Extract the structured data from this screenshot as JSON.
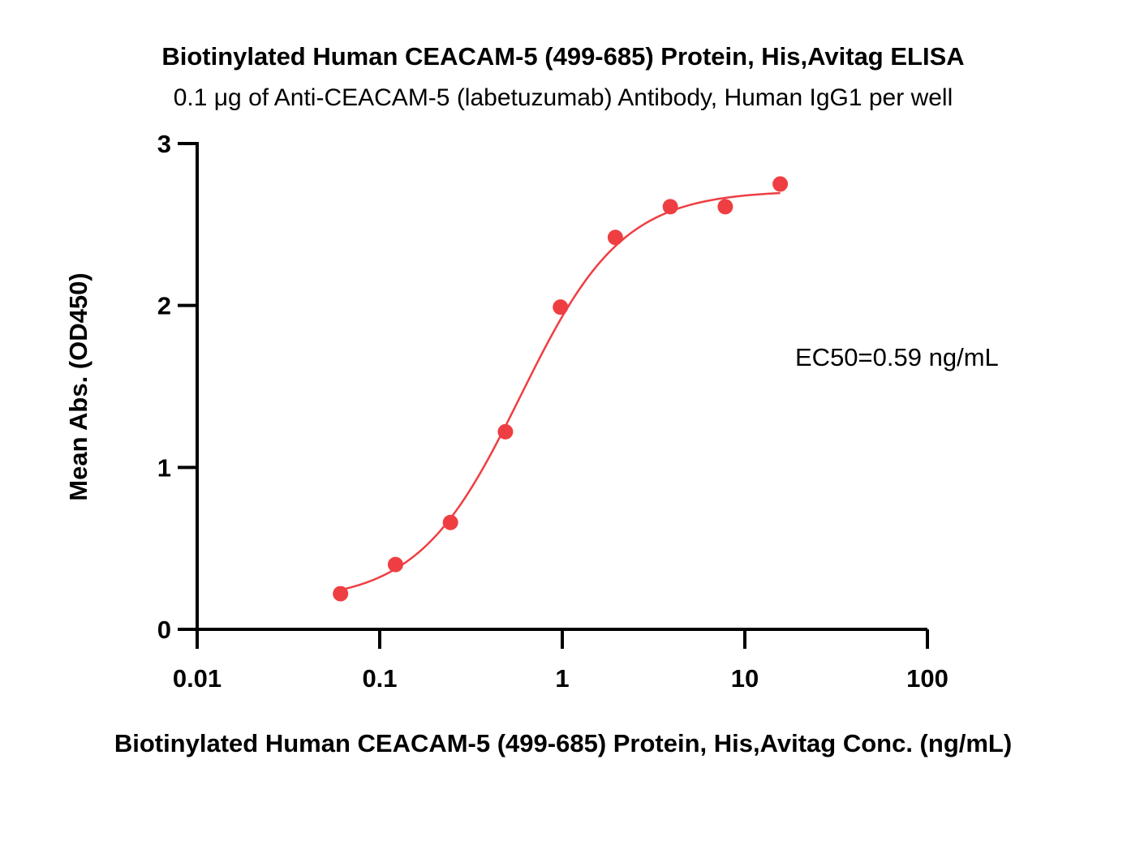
{
  "chart_data": {
    "type": "scatter",
    "title": "Biotinylated Human CEACAM-5 (499-685) Protein, His,Avitag ELISA",
    "subtitle": "0.1 μg of Anti-CEACAM-5 (labetuzumab) Antibody, Human IgG1 per well",
    "xlabel": "Biotinylated Human CEACAM-5 (499-685) Protein, His,Avitag Conc. (ng/mL)",
    "ylabel": "Mean Abs. (OD450)",
    "xscale": "log",
    "xlim": [
      0.01,
      100
    ],
    "ylim": [
      0,
      3
    ],
    "x_ticks": [
      0.01,
      0.1,
      1,
      10,
      100
    ],
    "x_tick_labels": [
      "0.01",
      "0.1",
      "1",
      "10",
      "100"
    ],
    "y_ticks": [
      0,
      1,
      2,
      3
    ],
    "y_tick_labels": [
      "0",
      "1",
      "2",
      "3"
    ],
    "grid": false,
    "annotation": "EC50=0.59 ng/mL",
    "color": "#ef3e42",
    "series": [
      {
        "x": [
          0.061,
          0.122,
          0.244,
          0.488,
          0.977,
          1.953,
          3.906,
          7.813,
          15.625
        ],
        "y": [
          0.22,
          0.4,
          0.66,
          1.22,
          1.99,
          2.42,
          2.61,
          2.61,
          2.75
        ]
      }
    ],
    "fit": {
      "model": "4PL",
      "bottom": 0.17,
      "top": 2.71,
      "ec50": 0.59,
      "hill": 1.55
    }
  }
}
